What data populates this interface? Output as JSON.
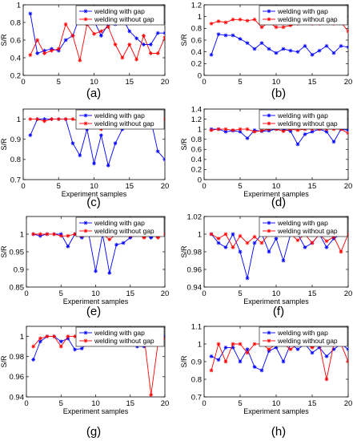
{
  "chart_data": [
    {
      "panel": "(a)",
      "type": "line",
      "xlabel": "",
      "ylabel": "S/R",
      "xlim": [
        0,
        20
      ],
      "ylim": [
        0.2,
        1
      ],
      "xticks": [
        "0",
        "5",
        "10",
        "15",
        "20"
      ],
      "yticks": [
        "0.2",
        "0.4",
        "0.6",
        "0.8",
        "1"
      ],
      "x": [
        1,
        2,
        3,
        4,
        5,
        6,
        7,
        8,
        9,
        10,
        11,
        12,
        13,
        14,
        15,
        16,
        17,
        18,
        19,
        20
      ],
      "series": [
        {
          "name": "welding with gap",
          "color": "#0000ff",
          "marker": "star",
          "values": [
            0.9,
            0.45,
            0.48,
            0.5,
            0.48,
            0.6,
            0.65,
            0.87,
            0.78,
            0.82,
            0.65,
            0.78,
            0.78,
            0.85,
            0.7,
            0.62,
            0.55,
            0.55,
            0.68,
            0.68
          ]
        },
        {
          "name": "welding without gap",
          "color": "#ff0000",
          "marker": "star",
          "values": [
            0.43,
            0.6,
            0.45,
            0.48,
            0.5,
            0.78,
            0.65,
            0.37,
            0.78,
            0.67,
            0.7,
            0.75,
            0.55,
            0.4,
            0.55,
            0.38,
            0.65,
            0.45,
            0.45,
            0.63
          ]
        }
      ]
    },
    {
      "panel": "(b)",
      "type": "line",
      "xlabel": "",
      "ylabel": "S/R",
      "xlim": [
        0,
        20
      ],
      "ylim": [
        0,
        1.2
      ],
      "xticks": [
        "0",
        "5",
        "10",
        "15",
        "20"
      ],
      "yticks": [
        "0",
        "0.2",
        "0.4",
        "0.6",
        "0.8",
        "1",
        "1.2"
      ],
      "x": [
        1,
        2,
        3,
        4,
        5,
        6,
        7,
        8,
        9,
        10,
        11,
        12,
        13,
        14,
        15,
        16,
        17,
        18,
        19,
        20
      ],
      "series": [
        {
          "name": "welding with gap",
          "color": "#0000ff",
          "marker": "star",
          "values": [
            0.35,
            0.7,
            0.68,
            0.68,
            0.62,
            0.55,
            0.45,
            0.55,
            0.45,
            0.38,
            0.45,
            0.42,
            0.4,
            0.5,
            0.35,
            0.42,
            0.5,
            0.38,
            0.5,
            0.48
          ]
        },
        {
          "name": "welding without gap",
          "color": "#ff0000",
          "marker": "star",
          "values": [
            0.88,
            0.92,
            0.9,
            0.95,
            0.95,
            0.93,
            0.95,
            0.82,
            0.9,
            0.82,
            0.82,
            0.85,
            0.88,
            0.9,
            0.88,
            0.88,
            0.92,
            0.88,
            0.9,
            0.75
          ]
        }
      ]
    },
    {
      "panel": "(c)",
      "type": "line",
      "xlabel": "Experiment samples",
      "ylabel": "S/R",
      "xlim": [
        0,
        20
      ],
      "ylim": [
        0.7,
        1.05
      ],
      "xticks": [
        "0",
        "5",
        "10",
        "15",
        "20"
      ],
      "yticks": [
        "0.7",
        "0.8",
        "0.9",
        "1"
      ],
      "x": [
        1,
        2,
        3,
        4,
        5,
        6,
        7,
        8,
        9,
        10,
        11,
        12,
        13,
        14,
        15,
        16,
        17,
        18,
        19,
        20
      ],
      "series": [
        {
          "name": "welding with gap",
          "color": "#0000ff",
          "marker": "star",
          "values": [
            0.92,
            1.0,
            1.0,
            1.0,
            1.0,
            1.0,
            0.88,
            0.82,
            0.95,
            0.78,
            0.92,
            0.77,
            0.88,
            0.95,
            1.0,
            0.96,
            1.0,
            1.0,
            0.84,
            0.8
          ]
        },
        {
          "name": "welding without gap",
          "color": "#ff0000",
          "marker": "star",
          "values": [
            1.0,
            1.0,
            0.99,
            1.0,
            1.0,
            1.0,
            1.0,
            0.99,
            1.0,
            1.0,
            0.95,
            0.99,
            0.96,
            1.0,
            1.0,
            1.0,
            1.0,
            1.0,
            1.0,
            1.0
          ]
        }
      ]
    },
    {
      "panel": "(d)",
      "type": "line",
      "xlabel": "Experiment samples",
      "ylabel": "S/R",
      "xlim": [
        0,
        20
      ],
      "ylim": [
        0,
        1.4
      ],
      "xticks": [
        "0",
        "5",
        "10",
        "15",
        "20"
      ],
      "yticks": [
        "0",
        "0.2",
        "0.4",
        "0.6",
        "0.8",
        "1",
        "1.2",
        "1.4"
      ],
      "x": [
        1,
        2,
        3,
        4,
        5,
        6,
        7,
        8,
        9,
        10,
        11,
        12,
        13,
        14,
        15,
        16,
        17,
        18,
        19,
        20
      ],
      "series": [
        {
          "name": "welding with gap",
          "color": "#0000ff",
          "marker": "star",
          "values": [
            1.0,
            1.0,
            0.95,
            0.97,
            0.95,
            0.82,
            0.98,
            0.96,
            0.97,
            1.0,
            1.0,
            0.96,
            0.7,
            0.9,
            0.95,
            1.0,
            0.95,
            0.75,
            1.0,
            0.98
          ]
        },
        {
          "name": "welding without gap",
          "color": "#ff0000",
          "marker": "star",
          "values": [
            0.98,
            1.0,
            1.0,
            0.98,
            1.0,
            1.0,
            0.95,
            0.97,
            1.0,
            1.0,
            0.96,
            1.0,
            0.98,
            1.0,
            1.0,
            1.0,
            1.0,
            1.0,
            1.0,
            0.92
          ]
        }
      ]
    },
    {
      "panel": "(e)",
      "type": "line",
      "xlabel": "Experiment samples",
      "ylabel": "S/R",
      "xlim": [
        0,
        20
      ],
      "ylim": [
        0.85,
        1.05
      ],
      "xticks": [
        "0",
        "5",
        "10",
        "15",
        "20"
      ],
      "yticks": [
        "0.85",
        "0.9",
        "0.95",
        "1"
      ],
      "x": [
        1,
        2,
        3,
        4,
        5,
        6,
        7,
        8,
        9,
        10,
        11,
        12,
        13,
        14,
        15,
        16,
        17,
        18,
        19,
        20
      ],
      "series": [
        {
          "name": "welding with gap",
          "color": "#0000ff",
          "marker": "star",
          "values": [
            1.0,
            0.995,
            1.0,
            1.0,
            1.0,
            0.965,
            1.0,
            0.99,
            1.0,
            0.895,
            1.0,
            0.89,
            0.97,
            0.975,
            0.99,
            1.0,
            1.0,
            0.99,
            1.0,
            1.0
          ]
        },
        {
          "name": "welding without gap",
          "color": "#ff0000",
          "marker": "star",
          "values": [
            1.0,
            1.0,
            1.0,
            1.0,
            0.995,
            0.995,
            1.0,
            0.995,
            1.0,
            1.0,
            1.0,
            0.985,
            1.0,
            1.0,
            0.995,
            1.0,
            0.99,
            1.0,
            0.99,
            1.0
          ]
        }
      ]
    },
    {
      "panel": "(f)",
      "type": "line",
      "xlabel": "Experiment samples",
      "ylabel": "S/R",
      "xlim": [
        0,
        20
      ],
      "ylim": [
        0.94,
        1.02
      ],
      "xticks": [
        "0",
        "5",
        "10",
        "15",
        "20"
      ],
      "yticks": [
        "0.94",
        "0.96",
        "0.98",
        "1",
        "1.02"
      ],
      "x": [
        1,
        2,
        3,
        4,
        5,
        6,
        7,
        8,
        9,
        10,
        11,
        12,
        13,
        14,
        15,
        16,
        17,
        18,
        19,
        20
      ],
      "series": [
        {
          "name": "welding with gap",
          "color": "#0000ff",
          "marker": "star",
          "values": [
            1.0,
            0.99,
            0.985,
            1.0,
            0.98,
            0.95,
            0.99,
            1.0,
            0.98,
            0.995,
            0.97,
            1.0,
            1.0,
            0.985,
            0.99,
            1.0,
            0.985,
            0.995,
            1.0,
            1.0
          ]
        },
        {
          "name": "welding without gap",
          "color": "#ff0000",
          "marker": "star",
          "values": [
            1.0,
            0.995,
            1.0,
            0.985,
            0.998,
            0.99,
            0.997,
            0.99,
            1.0,
            1.0,
            1.0,
            1.0,
            0.993,
            1.0,
            0.99,
            1.0,
            0.992,
            0.997,
            0.98,
            1.0
          ]
        }
      ]
    },
    {
      "panel": "(g)",
      "type": "line",
      "xlabel": "Experiment samples",
      "ylabel": "S/R",
      "xlim": [
        0,
        20
      ],
      "ylim": [
        0.94,
        1.01
      ],
      "xticks": [
        "0",
        "5",
        "10",
        "15",
        "20"
      ],
      "yticks": [
        "0.94",
        "0.96",
        "0.98",
        "1"
      ],
      "x": [
        1,
        2,
        3,
        4,
        5,
        6,
        7,
        8,
        9,
        10,
        11,
        12,
        13,
        14,
        15,
        16,
        17,
        18,
        19,
        20
      ],
      "series": [
        {
          "name": "welding with gap",
          "color": "#0000ff",
          "marker": "star",
          "values": [
            0.977,
            0.995,
            1.0,
            1.0,
            0.995,
            0.998,
            0.987,
            0.988,
            0.995,
            0.997,
            0.998,
            0.998,
            0.998,
            0.995,
            0.993,
            0.99,
            0.99,
            1.0,
            0.998,
            1.0
          ]
        },
        {
          "name": "welding without gap",
          "color": "#ff0000",
          "marker": "star",
          "values": [
            0.99,
            0.998,
            1.0,
            1.0,
            0.99,
            1.0,
            1.0,
            1.0,
            1.0,
            1.0,
            1.0,
            1.0,
            1.0,
            1.0,
            1.0,
            1.0,
            1.0,
            0.942,
            0.993,
            0.998
          ]
        }
      ]
    },
    {
      "panel": "(h)",
      "type": "line",
      "xlabel": "Experiment samples",
      "ylabel": "S/R",
      "xlim": [
        0,
        20
      ],
      "ylim": [
        0.7,
        1.1
      ],
      "xticks": [
        "0",
        "5",
        "10",
        "15",
        "20"
      ],
      "yticks": [
        "0.7",
        "0.8",
        "0.9",
        "1",
        "1.1"
      ],
      "x": [
        1,
        2,
        3,
        4,
        5,
        6,
        7,
        8,
        9,
        10,
        11,
        12,
        13,
        14,
        15,
        16,
        17,
        18,
        19,
        20
      ],
      "series": [
        {
          "name": "welding with gap",
          "color": "#0000ff",
          "marker": "star",
          "values": [
            0.93,
            0.91,
            0.98,
            0.98,
            0.9,
            0.97,
            0.87,
            0.85,
            0.96,
            0.98,
            0.9,
            1.0,
            0.97,
            1.0,
            0.95,
            0.98,
            0.93,
            0.97,
            1.0,
            0.97
          ]
        },
        {
          "name": "welding without gap",
          "color": "#ff0000",
          "marker": "star",
          "values": [
            0.85,
            1.0,
            0.9,
            1.0,
            1.0,
            0.95,
            1.0,
            1.0,
            0.97,
            1.0,
            1.0,
            0.97,
            1.0,
            1.0,
            0.98,
            1.0,
            0.8,
            1.0,
            1.0,
            0.9
          ]
        }
      ]
    }
  ]
}
